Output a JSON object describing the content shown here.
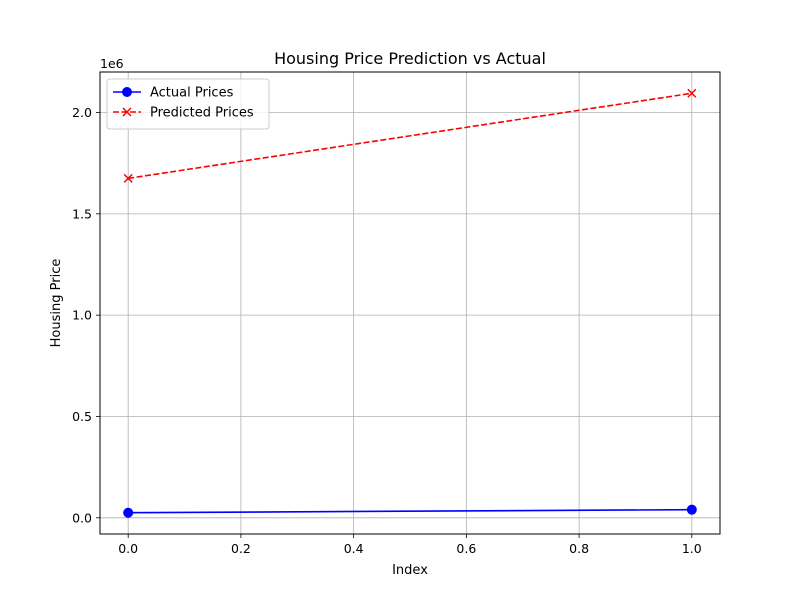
{
  "chart_data": {
    "type": "line",
    "title": "Housing Price Prediction vs Actual",
    "xlabel": "Index",
    "ylabel": "Housing Price",
    "y_offset_label": "1e6",
    "xlim": [
      -0.05,
      1.05
    ],
    "ylim": [
      -80000,
      2200000
    ],
    "x_ticks": [
      0.0,
      0.2,
      0.4,
      0.6,
      0.8,
      1.0
    ],
    "x_tick_labels": [
      "0.0",
      "0.2",
      "0.4",
      "0.6",
      "0.8",
      "1.0"
    ],
    "y_ticks": [
      0,
      500000,
      1000000,
      1500000,
      2000000
    ],
    "y_tick_labels": [
      "0.0",
      "0.5",
      "1.0",
      "1.5",
      "2.0"
    ],
    "grid": true,
    "legend_position": "upper-left",
    "series": [
      {
        "name": "Actual Prices",
        "x": [
          0,
          1
        ],
        "values": [
          25000,
          40000
        ],
        "color": "#0000ff",
        "line_style": "solid",
        "marker": "circle"
      },
      {
        "name": "Predicted Prices",
        "x": [
          0,
          1
        ],
        "values": [
          1675000,
          2095000
        ],
        "color": "#ff0000",
        "line_style": "dashed",
        "marker": "x"
      }
    ]
  }
}
